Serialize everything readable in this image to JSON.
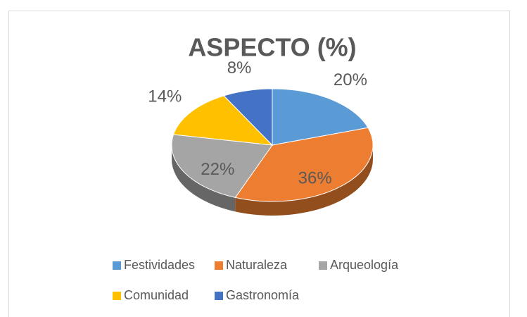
{
  "chart_data": {
    "type": "pie",
    "title": "ASPECTO (%)",
    "categories": [
      "Festividades",
      "Naturaleza",
      "Arqueología",
      "Comunidad",
      "Gastronomía"
    ],
    "values": [
      20,
      36,
      22,
      14,
      8
    ],
    "value_labels": [
      "20%",
      "36%",
      "22%",
      "14%",
      "8%"
    ],
    "colors": [
      "#5b9bd5",
      "#ed7d31",
      "#a5a5a5",
      "#ffc000",
      "#4472c4"
    ],
    "legend": "bottom"
  }
}
